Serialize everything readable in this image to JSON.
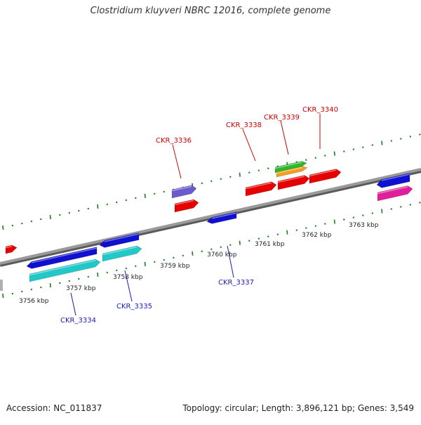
{
  "title": "Clostridium kluyveri NBRC 12016, complete genome",
  "footer": {
    "accession": "Accession: NC_011837",
    "summary": "Topology: circular; Length: 3,896,121 bp; Genes: 3,549"
  },
  "colors": {
    "backbone": "#8a8a8a",
    "ticks": "#1f7a1f",
    "label_top": "#cc0000",
    "label_bottom": "#1a1ab3",
    "red": "#e60000",
    "blue": "#1010d0",
    "cyan": "#20c8c8",
    "purple": "#6a5acd",
    "green": "#2eb82e",
    "orange": "#f0a020",
    "pink": "#e0209a"
  },
  "scale_labels": [
    "3756 kbp",
    "3757 kbp",
    "3758 kbp",
    "3759 kbp",
    "3760 kbp",
    "3761 kbp",
    "3762 kbp",
    "3763 kbp"
  ],
  "gene_labels": {
    "top": [
      "CKR_3336",
      "CKR_3338",
      "CKR_3339",
      "CKR_3340"
    ],
    "bottom": [
      "CKR_3334",
      "CKR_3335",
      "CKR_3337"
    ]
  }
}
